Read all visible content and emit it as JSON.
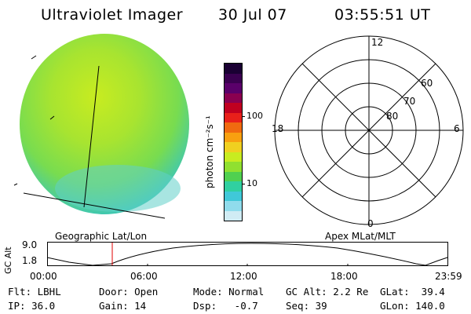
{
  "header": {
    "title": "Ultraviolet Imager",
    "date": "30 Jul 07",
    "time": "03:55:51 UT"
  },
  "colorbar": {
    "label": "photon cm⁻²s⁻¹",
    "ticks": [
      "100",
      "10"
    ],
    "colors": [
      "#1a0033",
      "#3a0050",
      "#5a006a",
      "#8a0050",
      "#c00020",
      "#e8201a",
      "#f06a10",
      "#f8a010",
      "#f0d020",
      "#c8ec20",
      "#90e030",
      "#50d050",
      "#30d0a0",
      "#40c8d8",
      "#90dcec",
      "#d0ecf4"
    ]
  },
  "image_panel": {
    "projection_label": "Geographic Lat/Lon",
    "fill_color": "#90e040",
    "highlight_color": "#c8ec20",
    "edge_color": "#40c8d8"
  },
  "polar_panel": {
    "projection_label": "Apex MLat/MLT",
    "mlt_labels": [
      "12",
      "18",
      "6",
      "0"
    ],
    "mlat_labels": [
      "60",
      "70",
      "80"
    ]
  },
  "timeline": {
    "ylabel": "GC Alt",
    "yticks": [
      "9.0",
      "1.8"
    ],
    "xticks": [
      "00:00",
      "06:00",
      "12:00",
      "18:00",
      "23:59"
    ],
    "marker_color": "#e00000"
  },
  "footer": {
    "flt": "Flt: LBHL",
    "ip": "IP: 36.0",
    "door": "Door: Open",
    "gain": "Gain: 14",
    "mode": "Mode: Normal",
    "dsp": "Dsp:   -0.7",
    "gcalt": "GC Alt: 2.2 Re",
    "seq": "Seq: 39",
    "glat": "GLat:  39.4",
    "glon": "GLon: 140.0"
  }
}
